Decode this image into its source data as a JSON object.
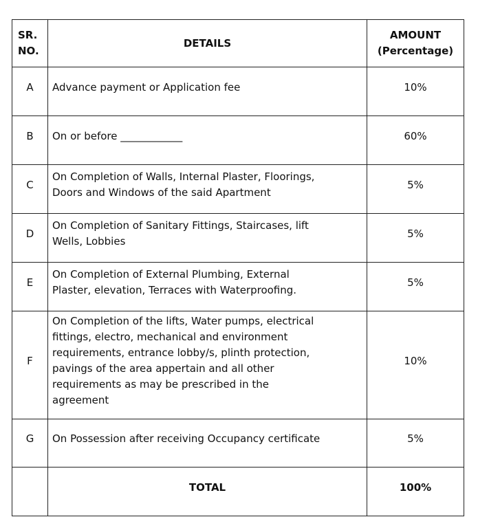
{
  "header": {
    "sr_no_line1": "SR.",
    "sr_no_line2": "NO.",
    "details": "DETAILS",
    "amount_line1": "AMOUNT",
    "amount_line2": "(Percentage)"
  },
  "rows": [
    {
      "sr": "A",
      "lines": [
        "Advance payment or Application fee"
      ],
      "amount": "10%"
    },
    {
      "sr": "B",
      "lines": [
        "On or before ____________"
      ],
      "amount": "60%"
    },
    {
      "sr": "C",
      "lines": [
        "On Completion of Walls, Internal Plaster, Floorings,",
        "Doors and Windows of the said Apartment"
      ],
      "amount": "5%"
    },
    {
      "sr": "D",
      "lines": [
        "On Completion of Sanitary Fittings, Staircases, lift",
        "Wells, Lobbies"
      ],
      "amount": "5%"
    },
    {
      "sr": "E",
      "lines": [
        "On Completion of External Plumbing, External",
        "Plaster, elevation, Terraces with Waterproofing."
      ],
      "amount": "5%"
    },
    {
      "sr": "F",
      "lines": [
        "On Completion of the lifts, Water pumps, electrical",
        "fittings, electro, mechanical and environment",
        "requirements, entrance lobby/s, plinth protection,",
        "pavings of the area appertain and all other",
        "requirements as may be prescribed in the",
        "agreement"
      ],
      "amount": "10%"
    },
    {
      "sr": "G",
      "lines": [
        "On Possession after receiving Occupancy certificate"
      ],
      "amount": "5%"
    }
  ],
  "total": {
    "label": "TOTAL",
    "amount": "100%"
  }
}
